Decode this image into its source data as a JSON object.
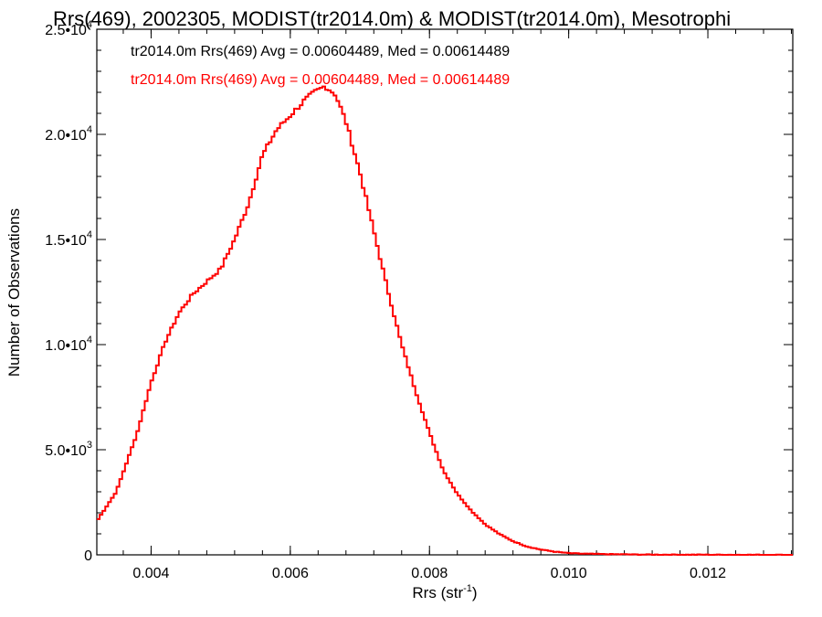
{
  "chart_data": {
    "type": "line",
    "title": "Rrs(469), 2002305, MODIST(tr2014.0m) & MODIST(tr2014.0m), Mesotrophi",
    "xlabel": "Rrs (str",
    "xlabel_sup": "-1",
    "xlabel_end": ")",
    "ylabel": "Number of Observations",
    "xlim": [
      0.00322,
      0.01322
    ],
    "ylim": [
      0,
      25000
    ],
    "x_ticks": [
      {
        "value": 0.004,
        "label": "0.004"
      },
      {
        "value": 0.006,
        "label": "0.006"
      },
      {
        "value": 0.008,
        "label": "0.008"
      },
      {
        "value": 0.01,
        "label": "0.010"
      },
      {
        "value": 0.012,
        "label": "0.012"
      }
    ],
    "y_ticks": [
      {
        "value": 0,
        "mant": "0",
        "exp": ""
      },
      {
        "value": 5000,
        "mant": "5.0•10",
        "exp": "3"
      },
      {
        "value": 10000,
        "mant": "1.0•10",
        "exp": "4"
      },
      {
        "value": 15000,
        "mant": "1.5•10",
        "exp": "4"
      },
      {
        "value": 20000,
        "mant": "2.0•10",
        "exp": "4"
      },
      {
        "value": 25000,
        "mant": "2.5•10",
        "exp": "4"
      }
    ],
    "grid": false,
    "annotations": [
      {
        "text": "tr2014.0m Rrs(469) Avg = 0.00604489, Med = 0.00614489",
        "color": "#000000"
      },
      {
        "text": "tr2014.0m Rrs(469) Avg = 0.00604489, Med = 0.00614489",
        "color": "#ff0000"
      }
    ],
    "series": [
      {
        "color": "#ff0000",
        "x": [
          0.00322,
          0.0035,
          0.0038,
          0.004,
          0.0042,
          0.0044,
          0.0046,
          0.0048,
          0.005,
          0.0052,
          0.0054,
          0.0056,
          0.0058,
          0.006,
          0.0062,
          0.00635,
          0.00645,
          0.0065,
          0.00665,
          0.0068,
          0.007,
          0.0072,
          0.0074,
          0.0076,
          0.0078,
          0.008,
          0.0082,
          0.0084,
          0.0086,
          0.0088,
          0.009,
          0.0092,
          0.0094,
          0.0096,
          0.0098,
          0.01,
          0.0102,
          0.0104,
          0.0106,
          0.0108,
          0.011,
          0.0115,
          0.012,
          0.0125,
          0.01322
        ],
        "y": [
          1600,
          3000,
          5800,
          8200,
          10100,
          11500,
          12400,
          13000,
          13600,
          15000,
          16700,
          19000,
          20200,
          20900,
          21600,
          22000,
          22200,
          22300,
          21900,
          20600,
          18200,
          15400,
          12600,
          10000,
          7800,
          5800,
          4000,
          2900,
          2100,
          1450,
          1000,
          650,
          400,
          250,
          150,
          80,
          55,
          40,
          30,
          22,
          15,
          10,
          6,
          3,
          1
        ]
      }
    ]
  }
}
